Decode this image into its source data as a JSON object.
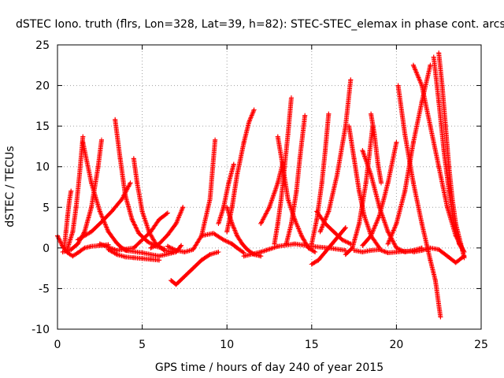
{
  "chart_data": {
    "type": "scatter",
    "title": "dSTEC Iono. truth (flrs, Lon=328, Lat=39, h=82): STEC-STEC_elemax in phase cont. arcs",
    "xlabel": "GPS time / hours of day 240 of year 2015",
    "ylabel": "dSTEC  / TECUs",
    "xlim": [
      0,
      25
    ],
    "ylim": [
      -10,
      25
    ],
    "xticks": [
      "0",
      "5",
      "10",
      "15",
      "20",
      "25"
    ],
    "yticks": [
      "-10",
      "-5",
      "0",
      "5",
      "10",
      "15",
      "20",
      "25"
    ],
    "grid": true,
    "legend": "none",
    "marker": "+",
    "color": "#ff0000",
    "series": [
      {
        "x": [
          0.0,
          0.3,
          0.6,
          0.9,
          1.2,
          1.6,
          2.0,
          2.5,
          3.0
        ],
        "y": [
          1.5,
          0.2,
          -0.6,
          -1.0,
          -0.6,
          0.0,
          0.2,
          0.3,
          0.4
        ]
      },
      {
        "x": [
          0.4,
          0.5,
          0.6,
          0.7,
          0.8
        ],
        "y": [
          0.0,
          2.0,
          4.0,
          5.8,
          7.0
        ]
      },
      {
        "x": [
          0.3,
          0.8,
          1.2,
          1.6,
          2.0,
          2.4,
          2.6
        ],
        "y": [
          -0.5,
          -0.2,
          0.5,
          2.0,
          5.0,
          10.0,
          13.3
        ]
      },
      {
        "x": [
          0.6,
          0.9,
          1.1,
          1.3,
          1.5
        ],
        "y": [
          0.0,
          2.0,
          5.0,
          9.0,
          13.7
        ]
      },
      {
        "x": [
          1.5,
          2.0,
          2.5,
          3.0,
          3.5,
          3.8,
          4.1
        ],
        "y": [
          13.0,
          8.0,
          4.5,
          2.0,
          0.6,
          0.0,
          -0.3
        ]
      },
      {
        "x": [
          1.2,
          2.0,
          2.6,
          3.2,
          3.8,
          4.3
        ],
        "y": [
          1.0,
          2.0,
          3.2,
          4.5,
          6.0,
          8.0
        ]
      },
      {
        "x": [
          3.4,
          3.7,
          4.0,
          4.4,
          4.8,
          5.3,
          5.8,
          6.3
        ],
        "y": [
          15.8,
          11.0,
          6.5,
          3.5,
          1.8,
          0.8,
          0.2,
          -0.1
        ]
      },
      {
        "x": [
          4.5,
          4.7,
          5.0,
          5.4,
          5.8,
          6.3,
          6.8
        ],
        "y": [
          11.0,
          8.0,
          4.5,
          2.0,
          0.5,
          -0.3,
          -0.5
        ]
      },
      {
        "x": [
          3.0,
          3.5,
          4.0,
          4.5,
          5.0,
          5.5,
          6.0
        ],
        "y": [
          -0.2,
          -0.8,
          -1.1,
          -1.2,
          -1.3,
          -1.4,
          -1.5
        ]
      },
      {
        "x": [
          2.5,
          3.5,
          4.5,
          5.5,
          6.0,
          6.5
        ],
        "y": [
          0.5,
          -0.3,
          0.0,
          2.0,
          3.5,
          4.3
        ]
      },
      {
        "x": [
          4.0,
          5.0,
          6.0,
          7.0,
          7.3
        ],
        "y": [
          -0.3,
          -0.6,
          -1.0,
          -0.5,
          0.3
        ]
      },
      {
        "x": [
          5.5,
          6.0,
          6.5,
          7.0,
          7.4
        ],
        "y": [
          0.0,
          0.5,
          1.6,
          3.0,
          5.0
        ]
      },
      {
        "x": [
          6.5,
          7.0,
          7.5,
          8.0,
          8.5,
          9.0,
          9.3
        ],
        "y": [
          0.2,
          -0.3,
          -0.5,
          -0.2,
          1.5,
          6.0,
          13.3
        ]
      },
      {
        "x": [
          6.7,
          7.0,
          7.5,
          8.0,
          8.5,
          9.0,
          9.5
        ],
        "y": [
          -4.0,
          -4.5,
          -3.5,
          -2.5,
          -1.5,
          -0.8,
          -0.5
        ]
      },
      {
        "x": [
          9.5,
          9.8,
          10.1,
          10.4
        ],
        "y": [
          3.0,
          5.0,
          8.0,
          10.3
        ]
      },
      {
        "x": [
          8.5,
          9.2,
          9.8,
          10.3,
          10.6,
          11.0
        ],
        "y": [
          1.5,
          1.8,
          1.0,
          0.5,
          0.0,
          -0.6
        ]
      },
      {
        "x": [
          10.0,
          10.3,
          10.6,
          11.0,
          11.3,
          11.6
        ],
        "y": [
          2.0,
          5.0,
          9.0,
          13.0,
          15.5,
          17.0
        ]
      },
      {
        "x": [
          10.0,
          10.3,
          10.6,
          10.9,
          11.2,
          11.6,
          12.0
        ],
        "y": [
          5.0,
          3.0,
          1.5,
          0.5,
          -0.2,
          -0.8,
          -1.0
        ]
      },
      {
        "x": [
          12.0,
          12.5,
          13.0,
          13.3
        ],
        "y": [
          3.0,
          5.0,
          8.0,
          10.5
        ]
      },
      {
        "x": [
          12.8,
          13.0,
          13.2,
          13.4,
          13.6,
          13.8
        ],
        "y": [
          0.5,
          3.0,
          6.0,
          10.0,
          14.0,
          18.5
        ]
      },
      {
        "x": [
          13.0,
          13.3,
          13.6,
          14.0,
          14.4,
          14.8,
          15.2
        ],
        "y": [
          13.7,
          10.0,
          6.0,
          3.5,
          1.5,
          0.0,
          -0.5
        ]
      },
      {
        "x": [
          13.5,
          13.8,
          14.1,
          14.3,
          14.6
        ],
        "y": [
          0.5,
          3.0,
          7.0,
          11.0,
          16.3
        ]
      },
      {
        "x": [
          11.0,
          12.0,
          13.0,
          14.0,
          15.0,
          16.0,
          17.0
        ],
        "y": [
          -1.0,
          -0.5,
          0.2,
          0.5,
          0.2,
          0.0,
          -0.3
        ]
      },
      {
        "x": [
          15.0,
          15.3,
          15.6,
          15.8,
          16.0
        ],
        "y": [
          0.5,
          3.5,
          8.0,
          12.0,
          16.5
        ]
      },
      {
        "x": [
          15.0,
          15.4,
          15.8,
          16.2,
          16.6,
          17.0
        ],
        "y": [
          -2.0,
          -1.5,
          -0.5,
          0.5,
          1.5,
          2.5
        ]
      },
      {
        "x": [
          15.5,
          16.0,
          16.5,
          17.0,
          17.3
        ],
        "y": [
          2.0,
          4.5,
          9.0,
          15.0,
          20.7
        ]
      },
      {
        "x": [
          15.3,
          15.8,
          16.3,
          16.8,
          17.3
        ],
        "y": [
          4.5,
          3.0,
          2.0,
          1.0,
          0.5
        ]
      },
      {
        "x": [
          17.0,
          17.4,
          17.8,
          18.2,
          18.6
        ],
        "y": [
          -0.8,
          0.0,
          3.0,
          8.0,
          15.0
        ]
      },
      {
        "x": [
          17.2,
          17.5,
          17.8,
          18.1,
          18.5,
          19.0
        ],
        "y": [
          15.0,
          11.0,
          7.0,
          4.0,
          1.5,
          0.0
        ]
      },
      {
        "x": [
          18.5,
          18.7,
          18.9,
          19.1
        ],
        "y": [
          16.5,
          14.0,
          10.5,
          8.0
        ]
      },
      {
        "x": [
          18.0,
          18.5,
          19.0,
          19.5,
          20.0
        ],
        "y": [
          0.3,
          1.5,
          4.0,
          8.0,
          13.0
        ]
      },
      {
        "x": [
          18.0,
          18.5,
          19.0,
          19.5,
          20.0,
          20.5,
          21.0,
          21.5
        ],
        "y": [
          12.0,
          9.0,
          5.0,
          2.0,
          0.0,
          -0.5,
          -0.3,
          0.0
        ]
      },
      {
        "x": [
          19.5,
          20.0,
          20.5,
          21.0,
          21.5,
          22.0
        ],
        "y": [
          0.5,
          3.0,
          7.0,
          13.0,
          18.0,
          22.5
        ]
      },
      {
        "x": [
          20.1,
          20.5,
          21.0,
          21.5,
          22.0,
          22.3,
          22.6
        ],
        "y": [
          20.0,
          14.0,
          8.0,
          3.0,
          -1.5,
          -4.0,
          -8.5
        ]
      },
      {
        "x": [
          21.0,
          21.5,
          22.0,
          22.5,
          23.0,
          23.5,
          24.0
        ],
        "y": [
          22.5,
          20.0,
          15.0,
          10.0,
          5.0,
          1.5,
          -0.5
        ]
      },
      {
        "x": [
          22.2,
          22.5,
          22.8,
          23.1,
          23.4,
          23.7,
          24.0
        ],
        "y": [
          23.5,
          18.0,
          12.0,
          7.0,
          3.0,
          0.5,
          -0.5
        ]
      },
      {
        "x": [
          22.5,
          22.7,
          22.9,
          23.1,
          23.3,
          23.5,
          23.8,
          24.0
        ],
        "y": [
          24.0,
          20.0,
          15.0,
          10.0,
          6.0,
          3.0,
          0.5,
          -1.2
        ]
      },
      {
        "x": [
          21.0,
          21.5,
          22.0,
          22.5,
          23.0,
          23.5,
          24.0
        ],
        "y": [
          -0.5,
          -0.3,
          0.0,
          -0.2,
          -1.0,
          -1.8,
          -1.0
        ]
      },
      {
        "x": [
          17.5,
          18.0,
          18.5,
          19.0,
          19.5,
          20.0,
          20.5,
          21.0
        ],
        "y": [
          -0.3,
          -0.5,
          -0.3,
          -0.2,
          -0.6,
          -0.5,
          -0.4,
          -0.4
        ]
      }
    ]
  }
}
